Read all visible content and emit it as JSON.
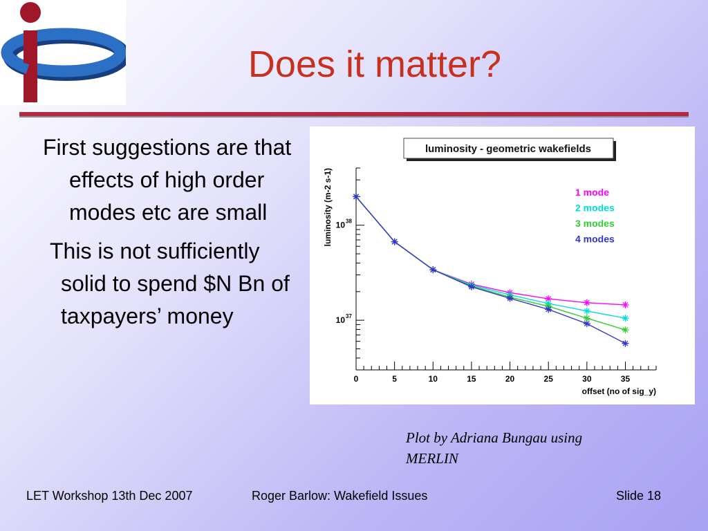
{
  "slide": {
    "title": "Does it matter?",
    "bullets": [
      "First suggestions are that effects of high order modes etc are small",
      "This is not sufficiently solid to spend $N Bn of taxpayers’ money"
    ],
    "caption": "Plot by Adriana Bungau using MERLIN",
    "footer": {
      "left": "LET Workshop 13th Dec 2007",
      "center": "Roger Barlow: Wakefield Issues",
      "right": "Slide 18"
    }
  },
  "colors": {
    "title": "#c8301e",
    "rule": "#b52a40",
    "logo_blue": "#1f5fb0",
    "logo_red": "#a0172a"
  },
  "logo": {
    "icon": "ip-logo-icon"
  },
  "chart_data": {
    "type": "line",
    "title": "luminosity - geometric wakefields",
    "xlabel": "offset (no of sig_y)",
    "ylabel": "luminosity (m-2 s-1)",
    "xlim": [
      0,
      39
    ],
    "ylim": [
      3e+36,
      4e+38
    ],
    "yscale": "log",
    "x_ticks": [
      "0",
      "5",
      "10",
      "15",
      "20",
      "25",
      "30",
      "35"
    ],
    "y_ticks": [
      {
        "base": "10",
        "exp": "38",
        "value": 1e+38
      },
      {
        "base": "10",
        "exp": "37",
        "value": 1e+37
      }
    ],
    "legend_position": "top-right",
    "marker": "star",
    "x": [
      0,
      5,
      10,
      15,
      20,
      25,
      30,
      35
    ],
    "series": [
      {
        "name": "1 mode",
        "color": "#ff00ff",
        "values": [
          2e+38,
          6.7e+37,
          3.4e+37,
          2.4e+37,
          1.95e+37,
          1.68e+37,
          1.53e+37,
          1.45e+37
        ]
      },
      {
        "name": "2 modes",
        "color": "#00dddd",
        "values": [
          2e+38,
          6.7e+37,
          3.4e+37,
          2.35e+37,
          1.85e+37,
          1.5e+37,
          1.25e+37,
          1.05e+37
        ]
      },
      {
        "name": "3 modes",
        "color": "#33cc33",
        "values": [
          2e+38,
          6.7e+37,
          3.4e+37,
          2.3e+37,
          1.75e+37,
          1.4e+37,
          1.05e+37,
          7.9e+36
        ]
      },
      {
        "name": "4 modes",
        "color": "#3333cc",
        "values": [
          2e+38,
          6.7e+37,
          3.4e+37,
          2.25e+37,
          1.7e+37,
          1.3e+37,
          9.2e+36,
          5.7e+36
        ]
      }
    ]
  }
}
